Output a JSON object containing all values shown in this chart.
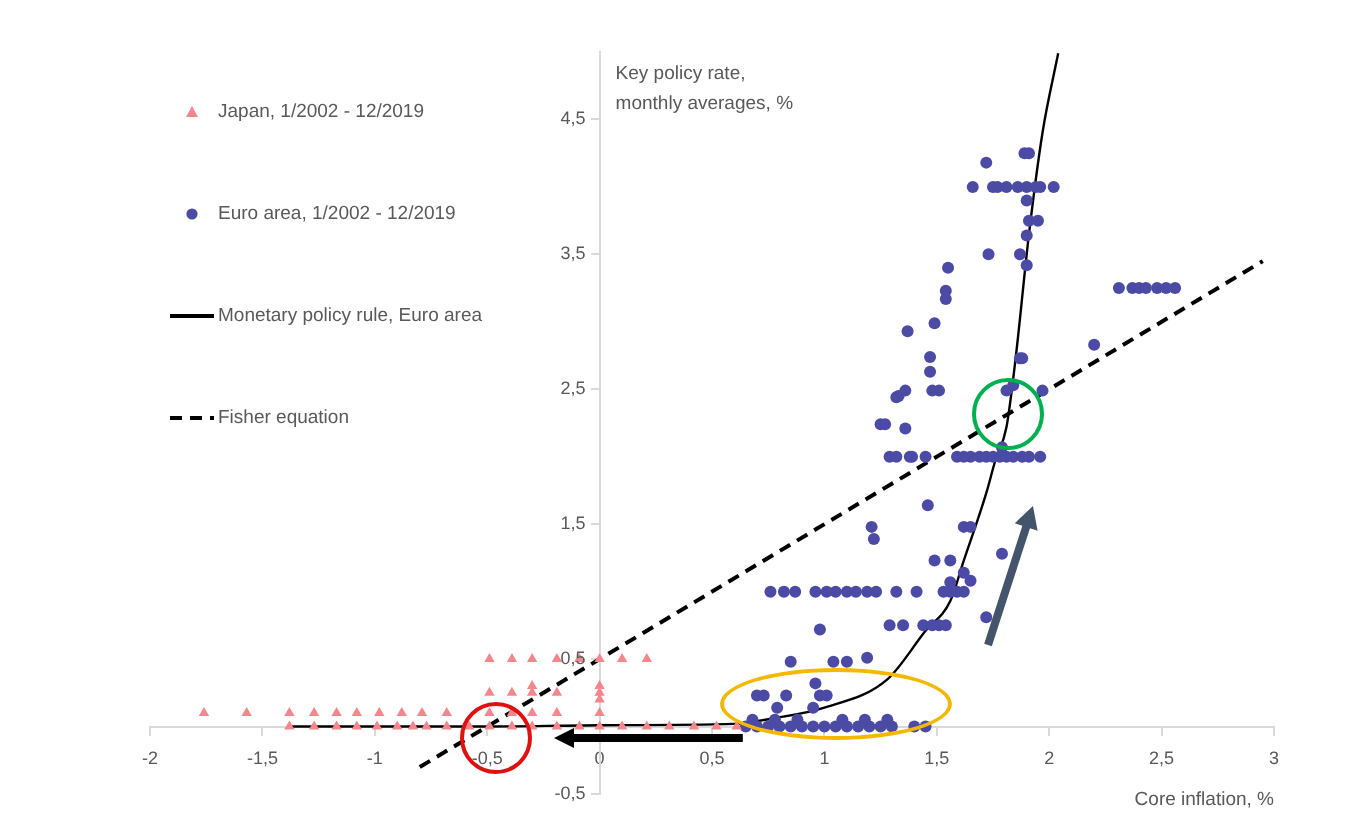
{
  "chart_data": {
    "type": "scatter",
    "ylabel": "Key policy rate, monthly averages, %",
    "xlabel": "Core inflation, %",
    "xlim": [
      -2,
      3
    ],
    "xticks": [
      -2,
      {
        "value": -1.5,
        "label": "-1,5"
      },
      -1,
      {
        "value": -0.5,
        "label": "-0,5"
      },
      0,
      {
        "value": 0.5,
        "label": "0,5"
      },
      1,
      {
        "value": 1.5,
        "label": "1,5"
      },
      2,
      {
        "value": 2.5,
        "label": "2,5"
      },
      3
    ],
    "ylim": [
      -0.5,
      5
    ],
    "yticks": [
      {
        "value": -0.5,
        "label": "-0,5"
      },
      {
        "value": 0.5,
        "label": "0,5"
      },
      {
        "value": 1.5,
        "label": "1,5"
      },
      {
        "value": 2.5,
        "label": "2,5"
      },
      {
        "value": 3.5,
        "label": "3,5"
      },
      {
        "value": 4.5,
        "label": "4,5"
      }
    ],
    "grid": false,
    "legend": "top left",
    "series": [
      {
        "name": "Japan, 1/2002 - 12/2019",
        "type": "scatter",
        "marker": "triangle",
        "color": "#f4868c",
        "x": [
          -1.38,
          -1.27,
          -1.17,
          -1.08,
          -0.99,
          -0.9,
          -0.83,
          -0.77,
          -0.68,
          -0.58,
          -0.49,
          -0.39,
          -0.3,
          -0.19,
          -0.09,
          0,
          0.1,
          0.21,
          0.31,
          0.42,
          0.52,
          0.61,
          -1.76,
          -1.57,
          -1.38,
          -1.27,
          -1.17,
          -1.08,
          -0.98,
          -0.88,
          -0.79,
          -0.68,
          -0.49,
          -0.39,
          -0.3,
          -0.19,
          0,
          -0.49,
          -0.39,
          -0.3,
          -0.19,
          0,
          -0.3,
          0,
          0,
          -0.49,
          -0.39,
          -0.3,
          -0.19,
          -0.09,
          0,
          0.1,
          0.21
        ],
        "values": [
          0,
          0,
          0,
          0,
          0,
          0,
          0,
          0,
          0,
          0,
          0,
          0,
          0,
          0,
          0,
          0,
          0,
          0,
          0,
          0,
          0,
          0,
          0.1,
          0.1,
          0.1,
          0.1,
          0.1,
          0.1,
          0.1,
          0.1,
          0.1,
          0.1,
          0.1,
          0.1,
          0.1,
          0.1,
          0.1,
          0.25,
          0.25,
          0.25,
          0.25,
          0.25,
          0.3,
          0.3,
          0.2,
          0.5,
          0.5,
          0.5,
          0.5,
          0.5,
          0.5,
          0.5,
          0.5
        ]
      },
      {
        "name": "Euro area, 1/2002 - 12/2019",
        "type": "scatter",
        "marker": "circle",
        "color": "#4b4ba6",
        "x": [
          1.72,
          1.66,
          1.75,
          1.77,
          1.81,
          1.86,
          1.9,
          1.94,
          1.96,
          2.02,
          1.89,
          1.91,
          1.9,
          1.91,
          1.95,
          1.9,
          1.73,
          1.87,
          1.9,
          1.55,
          1.54,
          1.54,
          1.49,
          1.37,
          1.47,
          1.47,
          2.2,
          2.31,
          2.37,
          2.4,
          2.43,
          2.48,
          2.52,
          2.56,
          1.87,
          1.88,
          1.84,
          1.36,
          1.48,
          1.33,
          1.32,
          1.51,
          1.81,
          1.97,
          1.25,
          1.27,
          1.36,
          1.29,
          1.32,
          1.38,
          1.39,
          1.45,
          1.59,
          1.62,
          1.65,
          1.69,
          1.72,
          1.75,
          1.78,
          1.81,
          1.84,
          1.88,
          1.91,
          1.96,
          1.79,
          1.46,
          1.62,
          1.65,
          1.21,
          1.22,
          1.49,
          1.56,
          1.79,
          1.62,
          1.65,
          1.56,
          0.76,
          0.82,
          0.87,
          0.96,
          1.01,
          1.05,
          1.1,
          1.14,
          1.19,
          1.23,
          1.32,
          1.41,
          1.53,
          1.56,
          1.59,
          1.62,
          1.72,
          0.98,
          1.29,
          1.35,
          1.44,
          1.48,
          1.51,
          1.54,
          0.85,
          1.04,
          1.1,
          1.19,
          0.96,
          0.7,
          0.73,
          0.83,
          0.98,
          1.01,
          0.79,
          0.95,
          0.65,
          0.7,
          0.75,
          0.8,
          0.85,
          0.9,
          0.95,
          1.0,
          1.05,
          1.1,
          1.15,
          1.2,
          1.25,
          1.3,
          1.4,
          1.45,
          0.68,
          0.78,
          0.88,
          1.08,
          1.18,
          1.28
        ],
        "values": [
          4.18,
          4,
          4,
          4,
          4,
          4,
          4,
          4,
          4,
          4,
          4.25,
          4.25,
          3.9,
          3.75,
          3.75,
          3.64,
          3.5,
          3.5,
          3.42,
          3.4,
          3.23,
          3.17,
          2.99,
          2.93,
          2.74,
          2.63,
          2.83,
          3.25,
          3.25,
          3.25,
          3.25,
          3.25,
          3.25,
          3.25,
          2.73,
          2.73,
          2.53,
          2.49,
          2.49,
          2.45,
          2.44,
          2.49,
          2.49,
          2.49,
          2.24,
          2.24,
          2.21,
          2,
          2,
          2,
          2,
          2,
          2,
          2,
          2,
          2,
          2,
          2,
          2,
          2,
          2,
          2,
          2,
          2,
          2.07,
          1.64,
          1.48,
          1.48,
          1.48,
          1.39,
          1.23,
          1.23,
          1.28,
          1.14,
          1.08,
          1.07,
          1,
          1,
          1,
          1,
          1,
          1,
          1,
          1,
          1,
          1,
          1,
          1,
          1,
          1,
          1,
          1,
          0.81,
          0.72,
          0.75,
          0.75,
          0.75,
          0.75,
          0.75,
          0.75,
          0.48,
          0.48,
          0.48,
          0.51,
          0.32,
          0.23,
          0.23,
          0.23,
          0.23,
          0.23,
          0.14,
          0.14,
          0,
          0,
          0,
          0,
          0,
          0,
          0,
          0,
          0,
          0,
          0,
          0,
          0,
          0,
          0,
          0,
          0.05,
          0.05,
          0.05,
          0.05,
          0.05,
          0.05
        ]
      },
      {
        "name": "Monetary policy rule, Euro area",
        "type": "line",
        "marker": "none",
        "line_style": "solid",
        "color": "#000000",
        "x": [
          -1.38,
          -0.5,
          0,
          0.6,
          0.77,
          1.0,
          1.28,
          1.45,
          1.56,
          1.62,
          1.72,
          1.76,
          1.81,
          1.85,
          1.91,
          1.97,
          2.04
        ],
        "values": [
          0,
          0,
          0.01,
          0.02,
          0.06,
          0.14,
          0.35,
          0.71,
          0.93,
          1.23,
          1.73,
          1.97,
          2.22,
          2.72,
          3.65,
          4.4,
          4.99
        ]
      },
      {
        "name": "Fisher equation",
        "type": "line",
        "marker": "none",
        "line_style": "dashed",
        "color": "#000000",
        "x": [
          -0.8,
          2.95
        ],
        "values": [
          -0.3,
          3.45
        ]
      }
    ]
  }
}
